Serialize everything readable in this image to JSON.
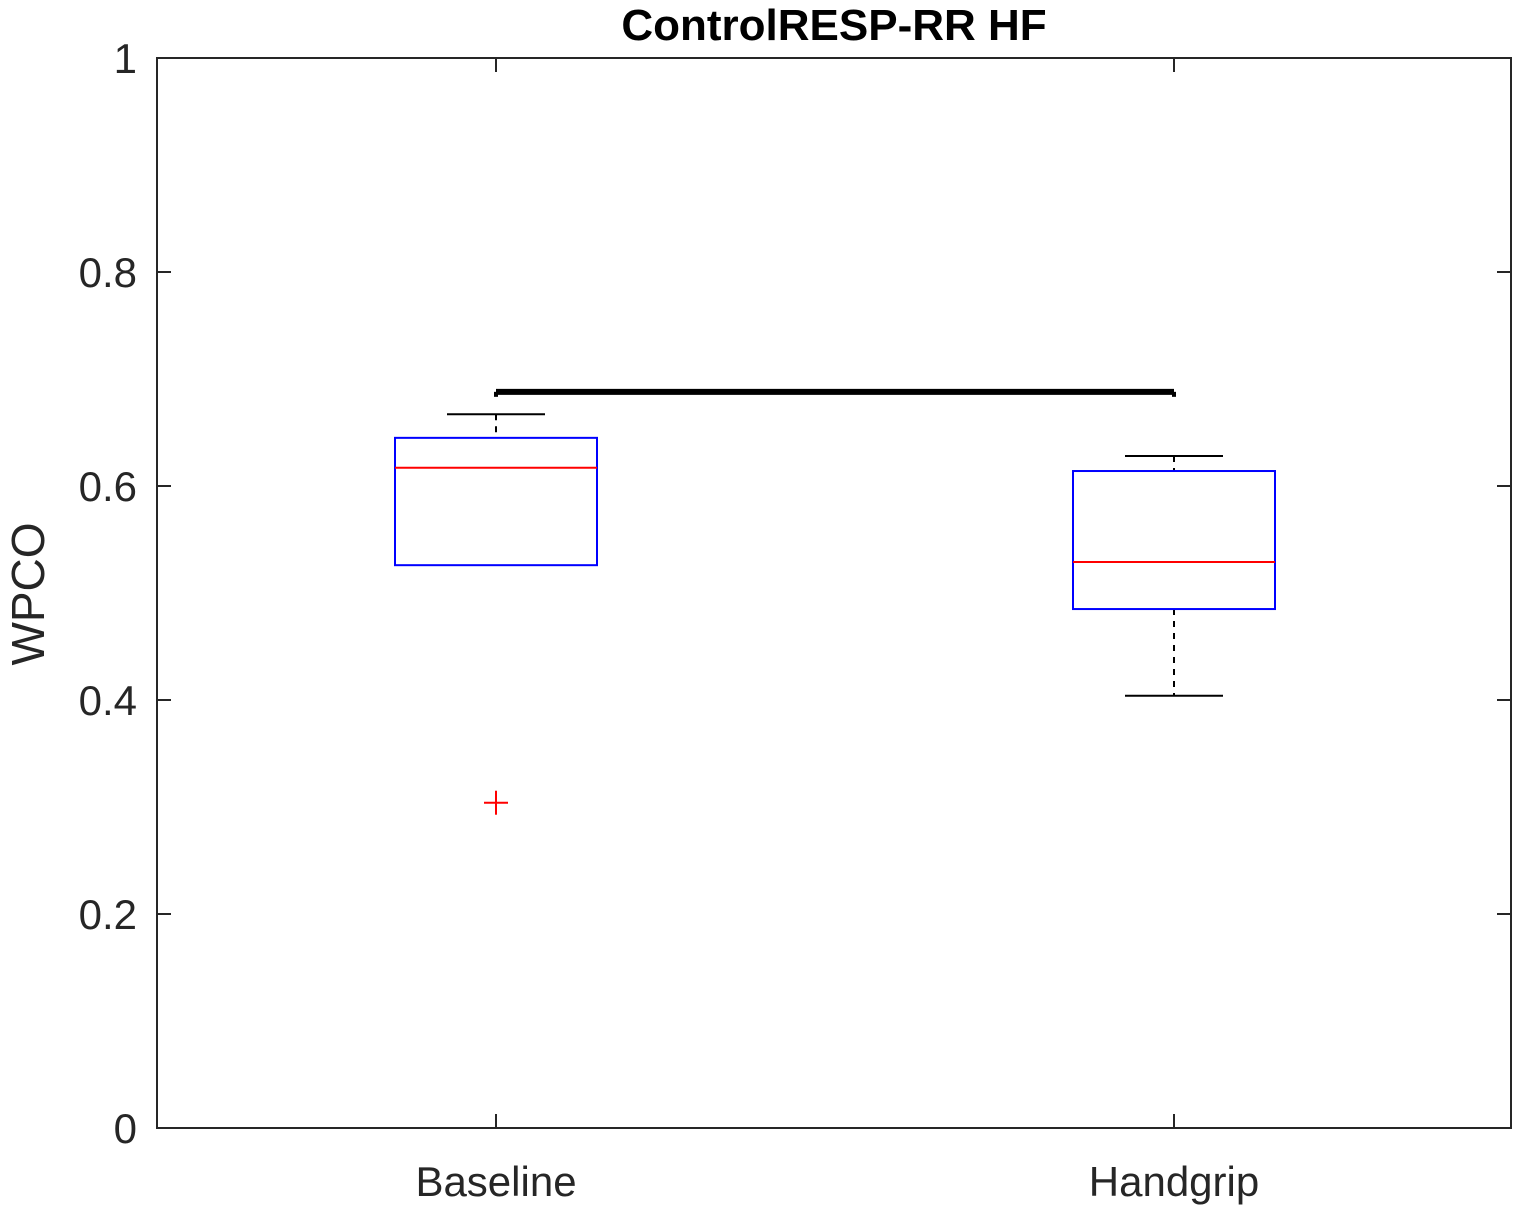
{
  "chart_data": {
    "type": "box",
    "title": "ControlRESP-RR HF",
    "xlabel": "",
    "ylabel": "WPCO",
    "ylim": [
      0,
      1
    ],
    "yticks": [
      0,
      0.2,
      0.4,
      0.6,
      0.8,
      1
    ],
    "ytick_labels": [
      "0",
      "0.2",
      "0.4",
      "0.6",
      "0.8",
      "1"
    ],
    "categories": [
      "Baseline",
      "Handgrip"
    ],
    "boxes": [
      {
        "category": "Baseline",
        "whisker_low": 0.526,
        "q1": 0.526,
        "median": 0.617,
        "q3": 0.645,
        "whisker_high": 0.667,
        "outliers": [
          0.304
        ]
      },
      {
        "category": "Handgrip",
        "whisker_low": 0.404,
        "q1": 0.485,
        "median": 0.529,
        "q3": 0.614,
        "whisker_high": 0.628,
        "outliers": []
      }
    ],
    "significance_bar": {
      "from": "Baseline",
      "to": "Handgrip",
      "y": 0.688
    },
    "grid": false,
    "legend": "none",
    "colors": {
      "box": "#0000ff",
      "median": "#ff0000",
      "whisker": "#000000",
      "outlier": "#ff0000",
      "axis": "#262626",
      "significance": "#000000"
    }
  }
}
